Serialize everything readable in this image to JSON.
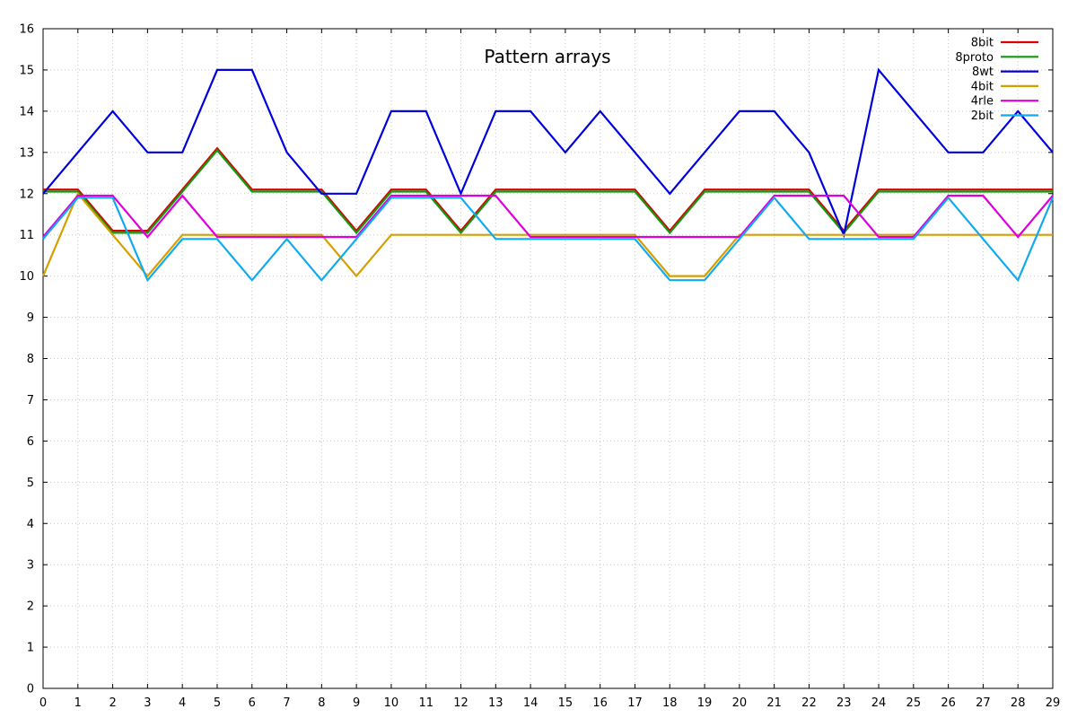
{
  "chart_data": {
    "type": "line",
    "title": "Pattern arrays",
    "xlabel": "",
    "ylabel": "",
    "xlim": [
      0,
      29
    ],
    "ylim": [
      0,
      16
    ],
    "grid": true,
    "legend_position": "top-right",
    "x": [
      0,
      1,
      2,
      3,
      4,
      5,
      6,
      7,
      8,
      9,
      10,
      11,
      12,
      13,
      14,
      15,
      16,
      17,
      18,
      19,
      20,
      21,
      22,
      23,
      24,
      25,
      26,
      27,
      28,
      29
    ],
    "x_ticks": [
      "0",
      "1",
      "2",
      "3",
      "4",
      "5",
      "6",
      "7",
      "8",
      "9",
      "10",
      "11",
      "12",
      "13",
      "14",
      "15",
      "16",
      "17",
      "18",
      "19",
      "20",
      "21",
      "22",
      "23",
      "24",
      "25",
      "26",
      "27",
      "28",
      "29"
    ],
    "y_ticks": [
      "0",
      "1",
      "2",
      "3",
      "4",
      "5",
      "6",
      "7",
      "8",
      "9",
      "10",
      "11",
      "12",
      "13",
      "14",
      "15",
      "16"
    ],
    "series": [
      {
        "name": "8bit",
        "color": "#dd0000",
        "values": [
          12.1,
          12.1,
          11.1,
          11.1,
          12.1,
          13.1,
          12.1,
          12.1,
          12.1,
          11.1,
          12.1,
          12.1,
          11.1,
          12.1,
          12.1,
          12.1,
          12.1,
          12.1,
          11.1,
          12.1,
          12.1,
          12.1,
          12.1,
          11.1,
          12.1,
          12.1,
          12.1,
          12.1,
          12.1,
          12.1
        ]
      },
      {
        "name": "8proto",
        "color": "#119911",
        "values": [
          12.05,
          12.05,
          11.05,
          11.05,
          12.05,
          13.05,
          12.05,
          12.05,
          12.05,
          11.05,
          12.05,
          12.05,
          11.05,
          12.05,
          12.05,
          12.05,
          12.05,
          12.05,
          11.05,
          12.05,
          12.05,
          12.05,
          12.05,
          11.05,
          12.05,
          12.05,
          12.05,
          12.05,
          12.05,
          12.05
        ]
      },
      {
        "name": "8wt",
        "color": "#0000dd",
        "values": [
          12,
          13,
          14,
          13,
          13,
          15,
          15,
          13,
          12,
          12,
          14,
          14,
          12,
          14,
          14,
          13,
          14,
          13,
          12,
          13,
          14,
          14,
          13,
          11,
          15,
          14,
          13,
          13,
          14,
          13
        ]
      },
      {
        "name": "4bit",
        "color": "#d4a000",
        "values": [
          10,
          12,
          11,
          10,
          11,
          11,
          11,
          11,
          11,
          10,
          11,
          11,
          11,
          11,
          11,
          11,
          11,
          11,
          10,
          10,
          11,
          11,
          11,
          11,
          11,
          11,
          11,
          11,
          11,
          11
        ]
      },
      {
        "name": "4rle",
        "color": "#dd00dd",
        "values": [
          10.95,
          11.95,
          11.95,
          10.95,
          11.95,
          10.95,
          10.95,
          10.95,
          10.95,
          10.95,
          11.95,
          11.95,
          11.95,
          11.95,
          10.95,
          10.95,
          10.95,
          10.95,
          10.95,
          10.95,
          10.95,
          11.95,
          11.95,
          11.95,
          10.95,
          10.95,
          11.95,
          11.95,
          10.95,
          11.95
        ]
      },
      {
        "name": "2bit",
        "color": "#11aaee",
        "values": [
          10.9,
          11.9,
          11.9,
          9.9,
          10.9,
          10.9,
          9.9,
          10.9,
          9.9,
          10.9,
          11.9,
          11.9,
          11.9,
          10.9,
          10.9,
          10.9,
          10.9,
          10.9,
          9.9,
          9.9,
          10.9,
          11.9,
          10.9,
          10.9,
          10.9,
          10.9,
          11.9,
          10.9,
          9.9,
          11.9
        ]
      }
    ]
  }
}
